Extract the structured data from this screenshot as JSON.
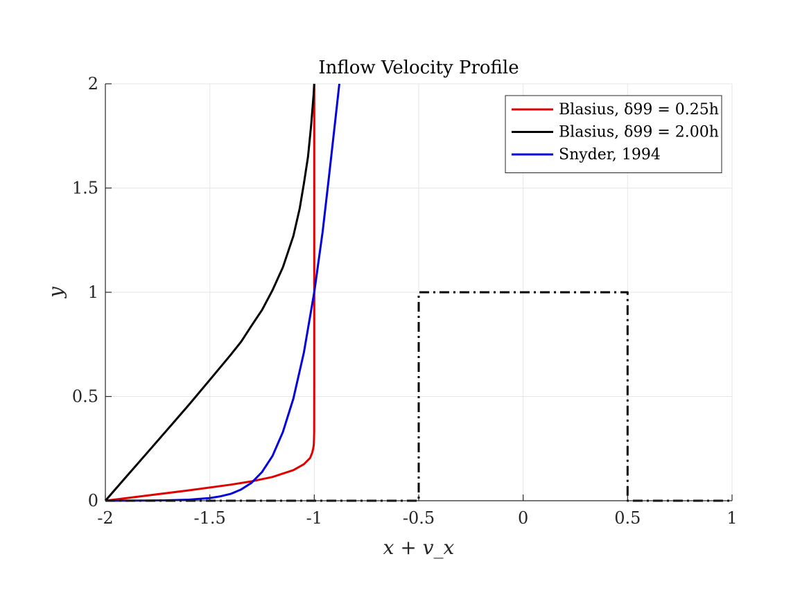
{
  "chart_data": {
    "type": "line",
    "title": "Inflow Velocity Profile",
    "xlabel": "x + v_x",
    "ylabel": "y",
    "xlim": [
      -2,
      1
    ],
    "ylim": [
      0,
      2
    ],
    "grid": true,
    "legend_position": "top-right",
    "xticks": [
      -2,
      -1.5,
      -1,
      -0.5,
      0,
      0.5,
      1
    ],
    "xtick_labels": [
      "-2",
      "-1.5",
      "-1",
      "-0.5",
      "0",
      "0.5",
      "1"
    ],
    "yticks": [
      0,
      0.5,
      1,
      1.5,
      2
    ],
    "ytick_labels": [
      "0",
      "0.5",
      "1",
      "1.5",
      "2"
    ],
    "series": [
      {
        "name": "Blasius, δ99 = 0.25h",
        "color": "#e00000",
        "style": "solid",
        "x": [
          -2,
          -1.8,
          -1.6,
          -1.4,
          -1.3,
          -1.2,
          -1.1,
          -1.05,
          -1.02,
          -1.01,
          -1.005,
          -1.002,
          -1.001,
          -1.0005,
          -1.0002,
          -1.0
        ],
        "y": [
          0,
          0.025,
          0.05,
          0.077,
          0.093,
          0.114,
          0.147,
          0.175,
          0.205,
          0.23,
          0.25,
          0.27,
          0.3,
          0.33,
          0.6,
          2.0
        ]
      },
      {
        "name": "Blasius, δ99 = 2.00h",
        "color": "#000000",
        "style": "solid",
        "x": [
          -2,
          -1.9,
          -1.8,
          -1.7,
          -1.6,
          -1.5,
          -1.4,
          -1.35,
          -1.3,
          -1.25,
          -1.2,
          -1.15,
          -1.1,
          -1.07,
          -1.05,
          -1.03,
          -1.015,
          -1.007,
          -1.003,
          -1.0
        ],
        "y": [
          0,
          0.115,
          0.23,
          0.345,
          0.46,
          0.58,
          0.7,
          0.763,
          0.84,
          0.915,
          1.01,
          1.12,
          1.27,
          1.4,
          1.52,
          1.65,
          1.8,
          1.9,
          1.95,
          2.0
        ]
      },
      {
        "name": "Snyder, 1994",
        "color": "#0000e0",
        "style": "solid",
        "x": [
          -2,
          -1.8,
          -1.7,
          -1.6,
          -1.5,
          -1.45,
          -1.4,
          -1.35,
          -1.3,
          -1.25,
          -1.2,
          -1.15,
          -1.1,
          -1.05,
          -1.0,
          -0.96,
          -0.93,
          -0.9,
          -0.88
        ],
        "y": [
          0,
          0.0006,
          0.002,
          0.005,
          0.013,
          0.021,
          0.033,
          0.054,
          0.086,
          0.138,
          0.215,
          0.33,
          0.49,
          0.71,
          1.0,
          1.29,
          1.55,
          1.82,
          2.0
        ]
      },
      {
        "name": "",
        "color": "#000000",
        "style": "dashdot",
        "x": [
          -2,
          -0.5,
          -0.5,
          0.5,
          0.5,
          1
        ],
        "y": [
          0,
          0,
          1,
          1,
          0,
          0
        ]
      }
    ]
  }
}
